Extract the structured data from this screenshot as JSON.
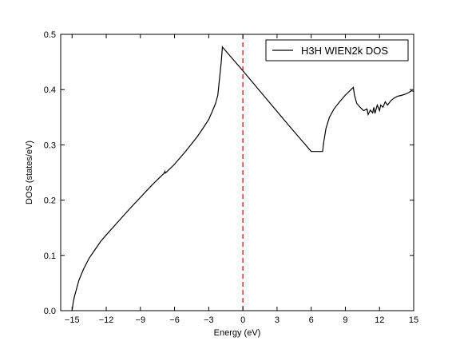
{
  "chart_data": {
    "type": "line",
    "xlabel": "Energy (eV)",
    "ylabel": "DOS (states/eV)",
    "xlim": [
      -16,
      15
    ],
    "ylim": [
      0,
      0.5
    ],
    "xticks": [
      -15,
      -12,
      -9,
      -6,
      -3,
      0,
      3,
      6,
      9,
      12,
      15
    ],
    "yticks": [
      0.0,
      0.1,
      0.2,
      0.3,
      0.4,
      0.5
    ],
    "ytick_labels": [
      "0.0",
      "0.1",
      "0.2",
      "0.3",
      "0.4",
      "0.5"
    ],
    "grid": false,
    "legend_position": "top-right",
    "fermi_level": {
      "x": 0,
      "style": "dashed",
      "color": "#cc0000"
    },
    "series": [
      {
        "name": "H3H WIEN2k DOS",
        "color": "#000000",
        "x": [
          -15.0,
          -14.9,
          -14.8,
          -14.6,
          -14.4,
          -14.0,
          -13.5,
          -13.0,
          -12.5,
          -12.0,
          -11.0,
          -10.0,
          -9.0,
          -8.0,
          -7.0,
          -6.9,
          -6.85,
          -6.8,
          -6.6,
          -6.0,
          -5.0,
          -4.0,
          -3.5,
          -3.0,
          -2.7,
          -2.4,
          -2.2,
          -2.0,
          -1.9,
          -1.8,
          0.0,
          2.0,
          4.0,
          6.0,
          7.0,
          7.1,
          7.3,
          7.6,
          8.0,
          8.5,
          9.0,
          9.5,
          9.7,
          9.8,
          10.0,
          10.3,
          10.6,
          10.9,
          11.0,
          11.2,
          11.4,
          11.5,
          11.6,
          11.8,
          12.0,
          12.1,
          12.3,
          12.5,
          12.7,
          13.0,
          13.3,
          13.6,
          14.0,
          14.3,
          14.6,
          14.8,
          15.0
        ],
        "values": [
          0.0,
          0.015,
          0.025,
          0.04,
          0.055,
          0.075,
          0.095,
          0.11,
          0.125,
          0.137,
          0.16,
          0.183,
          0.205,
          0.227,
          0.247,
          0.249,
          0.252,
          0.249,
          0.253,
          0.265,
          0.289,
          0.315,
          0.33,
          0.346,
          0.36,
          0.375,
          0.39,
          0.43,
          0.45,
          0.477,
          0.434,
          0.385,
          0.336,
          0.288,
          0.288,
          0.305,
          0.33,
          0.35,
          0.365,
          0.378,
          0.39,
          0.4,
          0.404,
          0.39,
          0.375,
          0.368,
          0.362,
          0.365,
          0.355,
          0.363,
          0.358,
          0.368,
          0.357,
          0.372,
          0.362,
          0.372,
          0.368,
          0.378,
          0.372,
          0.38,
          0.385,
          0.388,
          0.39,
          0.392,
          0.395,
          0.398,
          0.397
        ]
      }
    ]
  }
}
